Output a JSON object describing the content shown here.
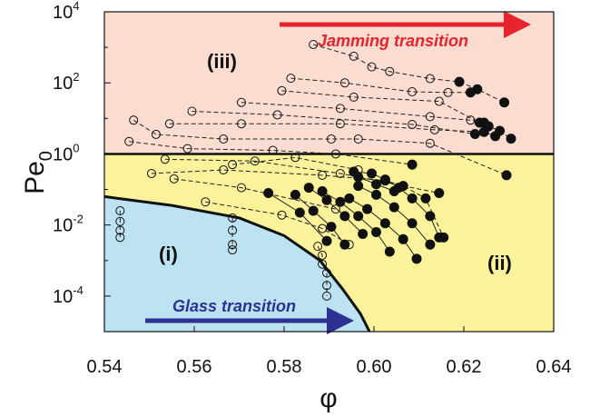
{
  "chart_data": {
    "type": "scatter",
    "x_label": "φ",
    "y_label": {
      "base": "Pe",
      "sub": "0"
    },
    "x_ticks": [
      "0.54",
      "0.56",
      "0.58",
      "0.60",
      "0.62",
      "0.64"
    ],
    "x_tick_values": [
      0.54,
      0.56,
      0.58,
      0.6,
      0.62,
      0.64
    ],
    "y_ticks": [
      {
        "base": "10",
        "exp": "4"
      },
      {
        "base": "10",
        "exp": "2"
      },
      {
        "base": "10",
        "exp": "0"
      },
      {
        "base": "10",
        "exp": "-2"
      },
      {
        "base": "10",
        "exp": "-4"
      }
    ],
    "y_tick_log_values": [
      4,
      2,
      0,
      -2,
      -4
    ],
    "xlim": [
      0.54,
      0.64
    ],
    "ylim_log10": [
      -5,
      4
    ],
    "y_scale": "log",
    "regions": [
      {
        "label": "(i)",
        "color": "#bde3f3"
      },
      {
        "label": "(ii)",
        "color": "#fbf29c"
      },
      {
        "label": "(iii)",
        "color": "#fbdcd0"
      }
    ],
    "annotations": [
      {
        "text": "Jamming transition",
        "color": "#e8232e"
      },
      {
        "text": "Glass transition",
        "color": "#2d3192"
      }
    ],
    "jamming_line_log10_pe": 0,
    "glass_boundary": [
      [
        0.54,
        -1.2
      ],
      [
        0.555,
        -1.45
      ],
      [
        0.57,
        -1.8
      ],
      [
        0.58,
        -2.3
      ],
      [
        0.588,
        -3.0
      ],
      [
        0.593,
        -3.8
      ],
      [
        0.597,
        -4.5
      ],
      [
        0.599,
        -5.0
      ]
    ],
    "series": [
      {
        "style": "dashed",
        "points": [
          [
            0.5865,
            3.08,
            "o"
          ],
          [
            0.5955,
            2.75,
            "o"
          ],
          [
            0.5995,
            2.45,
            "o"
          ],
          [
            0.6035,
            2.32,
            "o"
          ],
          [
            0.6125,
            2.12,
            "o"
          ],
          [
            0.619,
            2.03,
            "f"
          ],
          [
            0.623,
            1.82,
            "f"
          ],
          [
            0.629,
            1.45,
            "f"
          ]
        ]
      },
      {
        "style": "dashed",
        "points": [
          [
            0.5815,
            2.13,
            "o"
          ],
          [
            0.5935,
            2.0,
            "o"
          ],
          [
            0.6085,
            1.75,
            "o"
          ],
          [
            0.6165,
            1.73,
            "o"
          ],
          [
            0.6215,
            1.73,
            "f"
          ]
        ]
      },
      {
        "style": "dashed",
        "points": [
          [
            0.5795,
            1.78,
            "o"
          ],
          [
            0.5955,
            1.6,
            "o"
          ],
          [
            0.6145,
            1.48,
            "o"
          ],
          [
            0.6235,
            0.88,
            "f"
          ],
          [
            0.6255,
            0.78,
            "f"
          ],
          [
            0.628,
            0.65,
            "f"
          ],
          [
            0.6305,
            0.43,
            "f"
          ]
        ]
      },
      {
        "style": "dashed",
        "points": [
          [
            0.5705,
            1.45,
            "o"
          ],
          [
            0.5925,
            1.28,
            "o"
          ],
          [
            0.6125,
            1.05,
            "o"
          ],
          [
            0.6215,
            0.95,
            "o"
          ],
          [
            0.6245,
            0.88,
            "f"
          ]
        ]
      },
      {
        "style": "dashed",
        "points": [
          [
            0.5595,
            1.2,
            "o"
          ],
          [
            0.5785,
            1.1,
            "o"
          ],
          [
            0.6085,
            0.83,
            "o"
          ],
          [
            0.6225,
            0.56,
            "f"
          ]
        ]
      },
      {
        "style": "dashed",
        "points": [
          [
            0.5545,
            0.85,
            "o"
          ],
          [
            0.5705,
            0.85,
            "o"
          ],
          [
            0.5925,
            0.85,
            "o"
          ],
          [
            0.6135,
            0.68,
            "o"
          ],
          [
            0.6245,
            0.62,
            "f"
          ],
          [
            0.627,
            0.5,
            "f"
          ]
        ]
      },
      {
        "style": "dashed",
        "points": [
          [
            0.5465,
            0.95,
            "o"
          ],
          [
            0.5515,
            0.55,
            "o"
          ],
          [
            0.5665,
            0.42,
            "o"
          ],
          [
            0.5905,
            0.42,
            "o"
          ],
          [
            0.5965,
            0.42,
            "o"
          ],
          [
            0.6125,
            0.3,
            "o"
          ],
          [
            0.6295,
            -0.6,
            "f"
          ]
        ]
      },
      {
        "style": "dashed",
        "points": [
          [
            0.5455,
            0.35,
            "o"
          ],
          [
            0.5585,
            0.15,
            "o"
          ],
          [
            0.5775,
            0.1,
            "o"
          ],
          [
            0.5915,
            0.0,
            "o"
          ],
          [
            0.6085,
            -0.3,
            "f"
          ]
        ]
      },
      {
        "style": "dashed",
        "points": [
          [
            0.5535,
            -0.15,
            "o"
          ],
          [
            0.5735,
            -0.2,
            "o"
          ],
          [
            0.5925,
            -0.55,
            "o"
          ],
          [
            0.6145,
            -1.1,
            "f"
          ]
        ]
      },
      {
        "style": "dashed",
        "points": [
          [
            0.5505,
            -0.55,
            "o"
          ],
          [
            0.5665,
            -0.45,
            "o"
          ],
          [
            0.5885,
            -0.6,
            "o"
          ],
          [
            0.6025,
            -0.75,
            "f"
          ],
          [
            0.6065,
            -0.9,
            "f"
          ],
          [
            0.6115,
            -1.25,
            "f"
          ],
          [
            0.6155,
            -2.35,
            "f"
          ]
        ]
      },
      {
        "style": "dashed",
        "points": [
          [
            0.5625,
            -1.35,
            "o"
          ],
          [
            0.5795,
            -1.72,
            "o"
          ],
          [
            0.5885,
            -2.1,
            "o"
          ],
          [
            0.5945,
            -2.55,
            "o"
          ]
        ]
      },
      {
        "style": "dashed",
        "points": [
          [
            0.5555,
            -0.7,
            "o"
          ],
          [
            0.5705,
            -0.95,
            "o"
          ],
          [
            0.5915,
            -1.55,
            "o"
          ]
        ]
      },
      {
        "style": "dashed",
        "points": [
          [
            0.5685,
            -0.3,
            "o"
          ],
          [
            0.5825,
            -0.1,
            "o"
          ],
          [
            0.5965,
            -0.45,
            "o"
          ]
        ]
      },
      {
        "style": "dashed",
        "points": [
          [
            0.5685,
            -1.8,
            "o"
          ],
          [
            0.5685,
            -2.15,
            "o"
          ],
          [
            0.5685,
            -2.55,
            "o"
          ],
          [
            0.5685,
            -2.7,
            "o"
          ]
        ]
      },
      {
        "style": "dashed",
        "points": [
          [
            0.5435,
            -1.6,
            "o"
          ],
          [
            0.5435,
            -1.9,
            "o"
          ],
          [
            0.5435,
            -2.15,
            "o"
          ],
          [
            0.5435,
            -2.35,
            "o"
          ]
        ]
      },
      {
        "style": "dashed",
        "points": [
          [
            0.5875,
            -2.6,
            "o"
          ],
          [
            0.5885,
            -2.85,
            "o"
          ],
          [
            0.5885,
            -3.1,
            "o"
          ],
          [
            0.5895,
            -3.35,
            "o"
          ],
          [
            0.5895,
            -3.7,
            "o"
          ],
          [
            0.5895,
            -4.0,
            "o"
          ]
        ]
      },
      {
        "style": "solid",
        "points": [
          [
            0.5955,
            -0.5,
            "f"
          ],
          [
            0.5995,
            -0.55,
            "f"
          ],
          [
            0.6025,
            -0.72,
            "f"
          ],
          [
            0.6055,
            -0.95,
            "f"
          ],
          [
            0.6085,
            -1.25,
            "f"
          ],
          [
            0.6125,
            -1.75,
            "f"
          ],
          [
            0.6145,
            -2.35,
            "f"
          ]
        ]
      },
      {
        "style": "solid",
        "points": [
          [
            0.5965,
            -0.9,
            "f"
          ],
          [
            0.6005,
            -1.15,
            "f"
          ],
          [
            0.6045,
            -1.5,
            "f"
          ],
          [
            0.6085,
            -1.95,
            "f"
          ],
          [
            0.6125,
            -2.55,
            "f"
          ]
        ]
      },
      {
        "style": "solid",
        "points": [
          [
            0.5945,
            -1.25,
            "f"
          ],
          [
            0.5985,
            -1.55,
            "f"
          ],
          [
            0.6025,
            -1.95,
            "f"
          ],
          [
            0.6065,
            -2.4,
            "f"
          ],
          [
            0.6095,
            -2.95,
            "f"
          ]
        ]
      },
      {
        "style": "solid",
        "points": [
          [
            0.5885,
            -1.05,
            "f"
          ],
          [
            0.5925,
            -1.35,
            "f"
          ],
          [
            0.5965,
            -1.75,
            "f"
          ],
          [
            0.6005,
            -2.2,
            "f"
          ],
          [
            0.6035,
            -2.75,
            "f"
          ]
        ]
      },
      {
        "style": "solid",
        "points": [
          [
            0.5855,
            -0.95,
            "f"
          ],
          [
            0.5895,
            -1.3,
            "f"
          ],
          [
            0.5935,
            -1.75,
            "f"
          ],
          [
            0.5975,
            -2.25,
            "f"
          ]
        ]
      },
      {
        "style": "solid",
        "points": [
          [
            0.5825,
            -1.15,
            "f"
          ],
          [
            0.5865,
            -1.6,
            "f"
          ],
          [
            0.5905,
            -2.05,
            "f"
          ],
          [
            0.5935,
            -2.55,
            "f"
          ]
        ]
      },
      {
        "style": "solid",
        "points": [
          [
            0.5765,
            -1.1,
            "f"
          ],
          [
            0.5835,
            -1.65,
            "f"
          ],
          [
            0.5895,
            -2.45,
            "f"
          ]
        ]
      },
      {
        "style": "solid",
        "points": [
          [
            0.5965,
            -0.65,
            "f"
          ],
          [
            0.6005,
            -0.85,
            "f"
          ],
          [
            0.6045,
            -1.05,
            "f"
          ]
        ]
      }
    ]
  }
}
